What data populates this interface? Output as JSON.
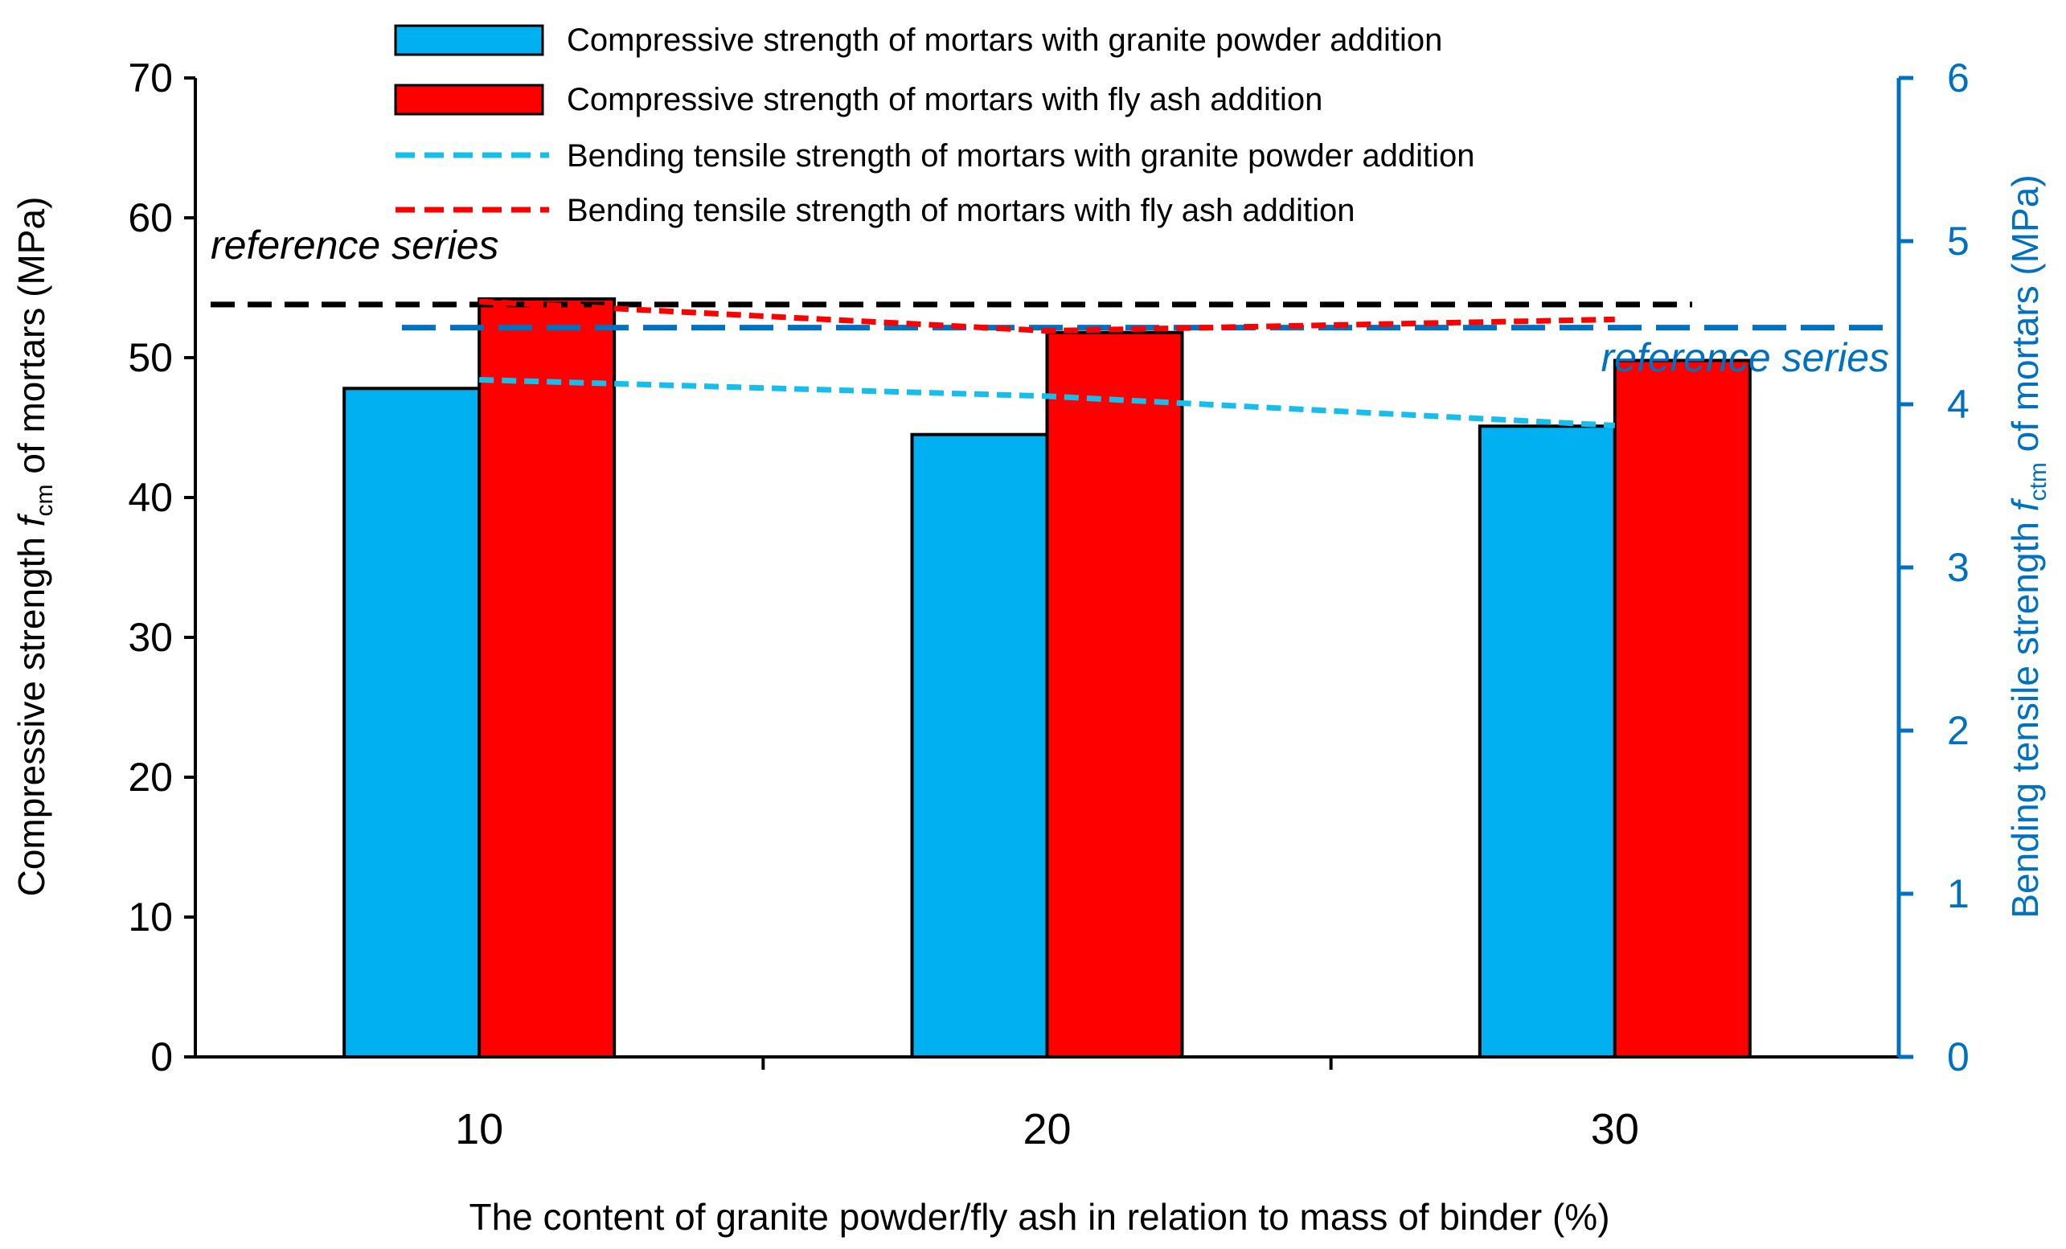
{
  "chart_data": {
    "type": "bar",
    "categories": [
      "10",
      "20",
      "30"
    ],
    "xlabel": "The content of granite powder/fly ash in relation to mass of binder (%)",
    "ylabel_left": {
      "prefix": "Compressive strength ",
      "symbol": "f",
      "subscript": "cm",
      "suffix": " of mortars (MPa)"
    },
    "ylabel_right": {
      "prefix": "Bending tensile strength ",
      "symbol": "f",
      "subscript": "ctm",
      "suffix": " of mortars (MPa)"
    },
    "ylim_left": [
      0,
      70
    ],
    "yticks_left": [
      0,
      10,
      20,
      30,
      40,
      50,
      60,
      70
    ],
    "ylim_right": [
      0,
      6
    ],
    "yticks_right": [
      0,
      1,
      2,
      3,
      4,
      5,
      6
    ],
    "grid": false,
    "legend_position": "top",
    "series": [
      {
        "name": "Compressive strength of mortars with granite powder addition",
        "type": "bar",
        "axis": "left",
        "values": [
          47.8,
          44.5,
          45.1
        ]
      },
      {
        "name": "Compressive strength of mortars with fly ash addition",
        "type": "bar",
        "axis": "left",
        "values": [
          54.2,
          51.8,
          49.8
        ]
      },
      {
        "name": "Bending tensile strength of mortars with granite powder addition",
        "type": "line",
        "axis": "right",
        "style": "dashed",
        "values": [
          4.15,
          4.05,
          3.87
        ]
      },
      {
        "name": "Bending tensile strength of mortars with fly ash addition",
        "type": "line",
        "axis": "right",
        "style": "dashed",
        "values": [
          4.63,
          4.45,
          4.52
        ]
      }
    ],
    "reference_lines": [
      {
        "label": "reference series",
        "axis": "left",
        "value": 53.8
      },
      {
        "label": "reference series",
        "axis": "right",
        "value": 4.47
      }
    ]
  },
  "colors": {
    "granite_bar": "#00B0F0",
    "flyash_bar": "#FF0000",
    "granite_line": "#17BEEC",
    "flyash_line": "#FF0000",
    "reference_left": "#000000",
    "reference_right": "#0070C0",
    "right_axis": "#0070C0"
  }
}
